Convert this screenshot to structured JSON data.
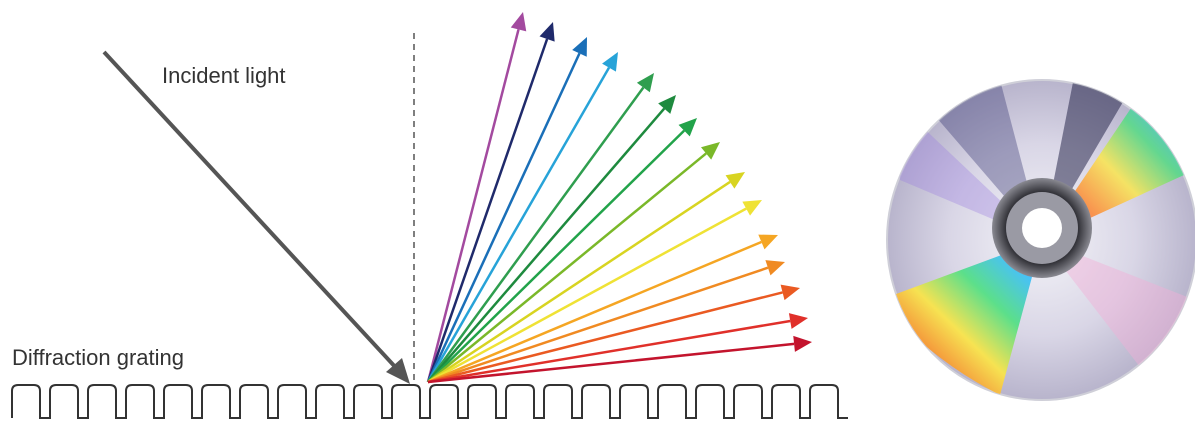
{
  "labels": {
    "incident_light": "Incident light",
    "diffraction_grating": "Diffraction grating"
  },
  "colors": {
    "incident": "#555555",
    "normal_line": "#555555",
    "grating": "#333333",
    "rays": [
      "#a34a9f",
      "#1f2a6b",
      "#1a6fb8",
      "#27a3d8",
      "#2f9e4f",
      "#1e8a3e",
      "#22a34a",
      "#7ab829",
      "#d8d421",
      "#efe235",
      "#f5a623",
      "#f08a22",
      "#ea5a22",
      "#e0302a",
      "#c3142d"
    ]
  },
  "icons": {
    "disc": "cd-disc-icon"
  }
}
